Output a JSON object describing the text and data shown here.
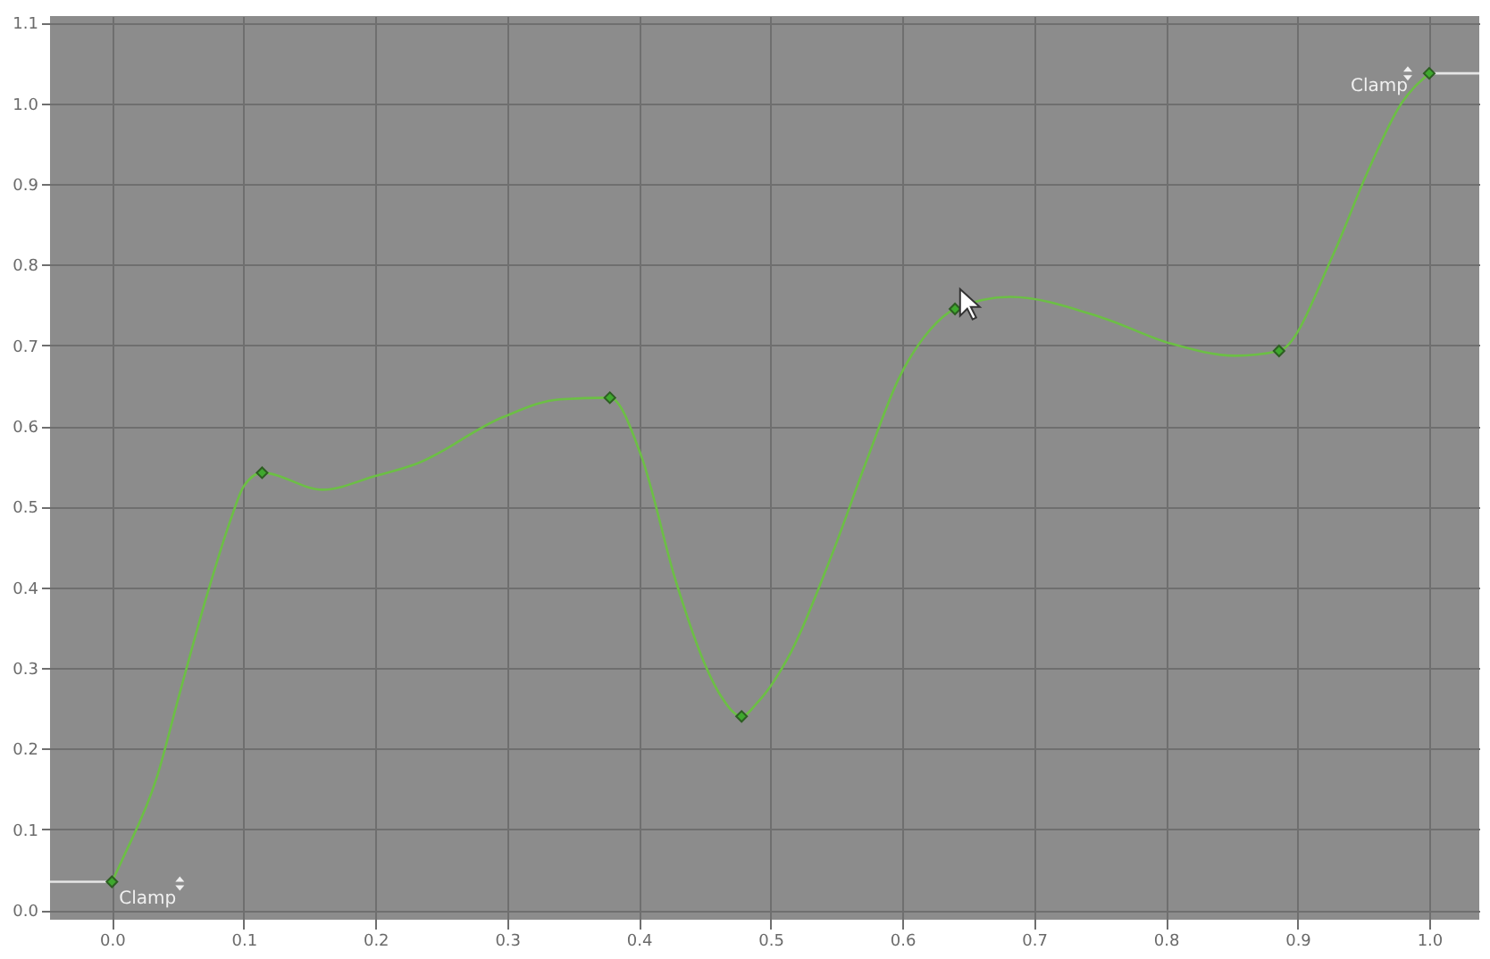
{
  "chart_data": {
    "type": "line",
    "xlim": [
      -0.047,
      1.038
    ],
    "ylim": [
      -0.012,
      1.108
    ],
    "xticks": [
      {
        "value": 0,
        "label": "0.0"
      },
      0.1,
      0.2,
      0.3,
      0.4,
      0.5,
      0.6,
      0.7,
      0.8,
      0.9,
      {
        "value": 1,
        "label": "1.0"
      }
    ],
    "yticks": [
      {
        "value": 0,
        "label": "0.0"
      },
      0.1,
      0.2,
      0.3,
      0.4,
      0.5,
      0.6,
      0.7,
      0.8,
      0.9,
      {
        "value": 1,
        "label": "1.0"
      },
      1.1
    ],
    "grid": true,
    "series": [
      {
        "color": "#6cbf45",
        "x": [
          0,
          0.008,
          0.034,
          0.051,
          0.073,
          0.091,
          0.1,
          0.114,
          0.16,
          0.2,
          0.231,
          0.297,
          0.34,
          0.378,
          0.402,
          0.428,
          0.449,
          0.462,
          0.478,
          0.49,
          0.512,
          0.546,
          0.572,
          0.598,
          0.621,
          0.64,
          0.682,
          0.752,
          0.804,
          0.853,
          0.886,
          0.927,
          0.953,
          0.979,
          1.0
        ],
        "values": [
          0.035,
          0.063,
          0.164,
          0.266,
          0.395,
          0.488,
          0.525,
          0.542,
          0.521,
          0.538,
          0.553,
          0.611,
          0.633,
          0.635,
          0.562,
          0.408,
          0.309,
          0.266,
          0.24,
          0.257,
          0.309,
          0.438,
          0.553,
          0.661,
          0.719,
          0.745,
          0.76,
          0.734,
          0.702,
          0.687,
          0.693,
          0.812,
          0.914,
          1.0,
          1.037
        ]
      },
      {
        "type": "line",
        "color": "#e6e6e6",
        "x": [
          -0.047,
          0
        ],
        "values": [
          0.035,
          0.035
        ]
      },
      {
        "type": "line",
        "color": "#e6e6e6",
        "x": [
          1.0,
          1.038
        ],
        "values": [
          1.037,
          1.037
        ]
      },
      {
        "type": "scatter",
        "marker": "diamond",
        "color": "#3fa82e",
        "x": [
          0,
          0.114,
          0.378,
          0.478,
          0.64,
          0.886,
          1.0
        ],
        "values": [
          0.035,
          0.542,
          0.635,
          0.24,
          0.745,
          0.693,
          1.037
        ]
      }
    ],
    "annotations": [
      {
        "text": "Clamp",
        "x": 0,
        "y": 0.035
      },
      {
        "text": "Clamp",
        "x": 1.0,
        "y": 1.037
      }
    ]
  }
}
